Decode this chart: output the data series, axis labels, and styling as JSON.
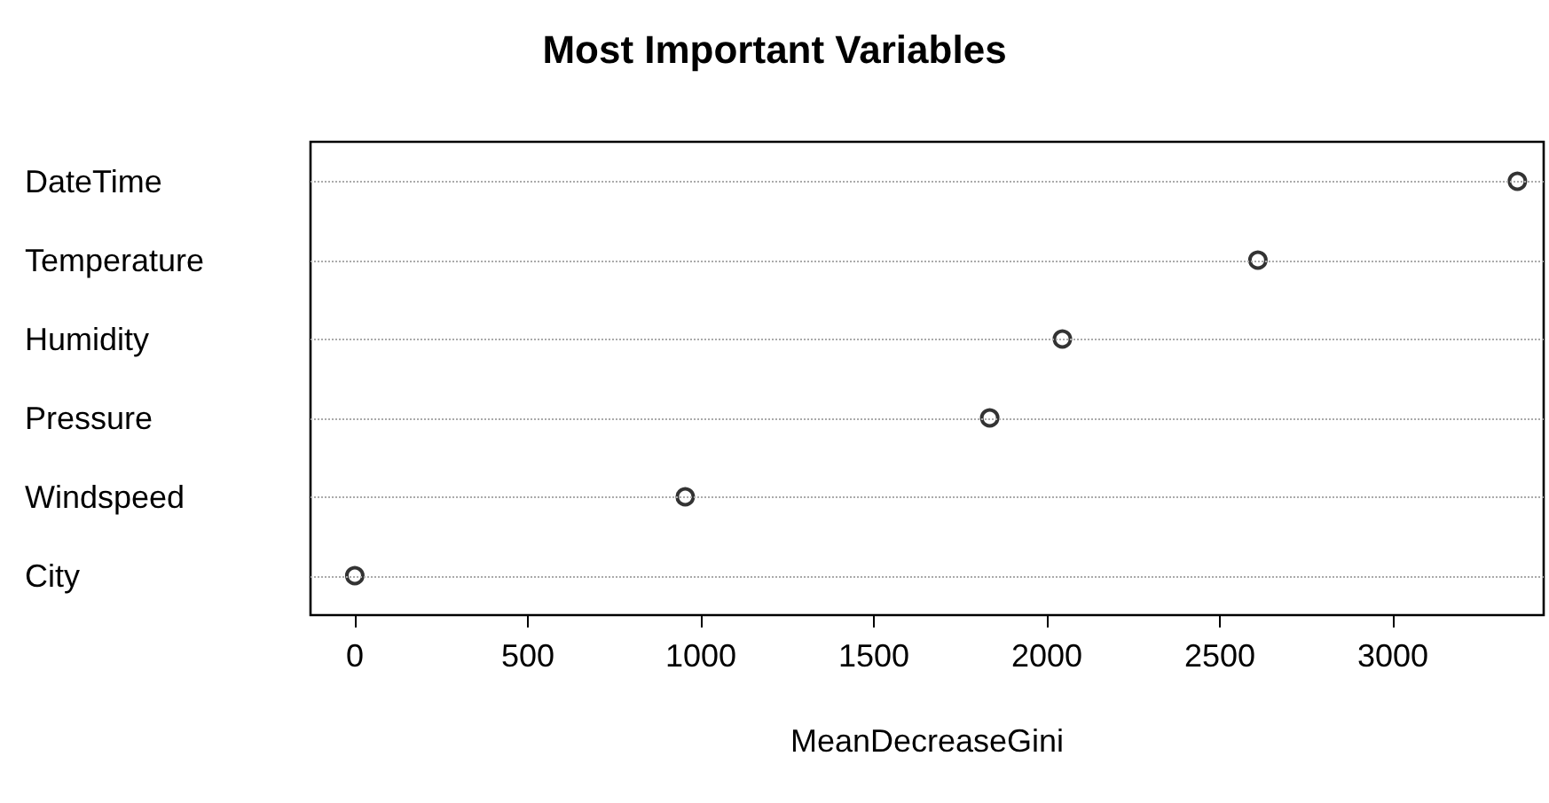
{
  "chart_data": {
    "type": "scatter",
    "orientation": "horizontal",
    "title": "Most Important Variables",
    "xlabel": "MeanDecreaseGini",
    "categories": [
      "DateTime",
      "Temperature",
      "Humidity",
      "Pressure",
      "Windspeed",
      "City"
    ],
    "values": [
      3360,
      2610,
      2045,
      1835,
      955,
      0
    ],
    "color": "#000000",
    "marker": "circle",
    "grid": "y",
    "xlim": [
      -128,
      3436
    ],
    "xticks": [
      0,
      500,
      1000,
      1500,
      2000,
      2500,
      3000
    ]
  }
}
